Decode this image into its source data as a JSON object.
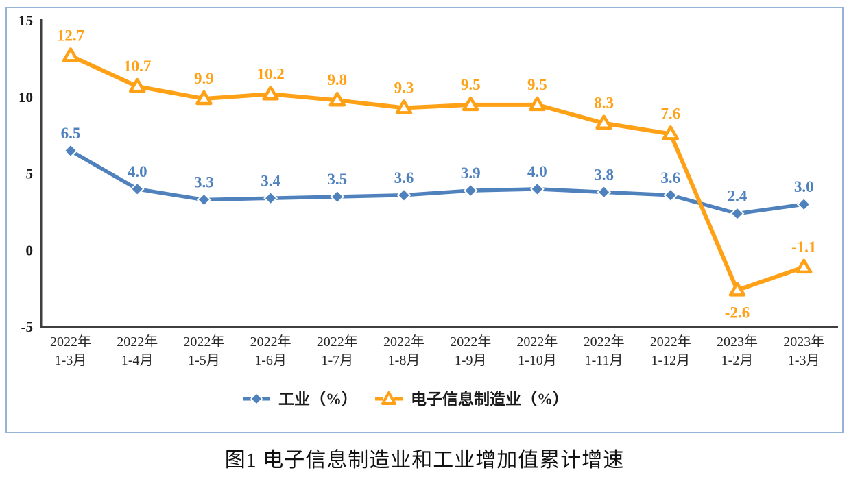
{
  "figure": {
    "caption": "图1 电子信息制造业和工业增加值累计增速"
  },
  "chart_data": {
    "type": "line",
    "title": "图1 电子信息制造业和工业增加值累计增速",
    "categories": [
      [
        "2022年",
        "1-3月"
      ],
      [
        "2022年",
        "1-4月"
      ],
      [
        "2022年",
        "1-5月"
      ],
      [
        "2022年",
        "1-6月"
      ],
      [
        "2022年",
        "1-7月"
      ],
      [
        "2022年",
        "1-8月"
      ],
      [
        "2022年",
        "1-9月"
      ],
      [
        "2022年",
        "1-10月"
      ],
      [
        "2022年",
        "1-11月"
      ],
      [
        "2022年",
        "1-12月"
      ],
      [
        "2023年",
        "1-2月"
      ],
      [
        "2023年",
        "1-3月"
      ]
    ],
    "series": [
      {
        "name": "工业（%）",
        "marker": "diamond",
        "color": "#4f81bd",
        "values": [
          6.5,
          4.0,
          3.3,
          3.4,
          3.5,
          3.6,
          3.9,
          4.0,
          3.8,
          3.6,
          2.4,
          3.0
        ],
        "labels": [
          "6.5",
          "4.0",
          "3.3",
          "3.4",
          "3.5",
          "3.6",
          "3.9",
          "4.0",
          "3.8",
          "3.6",
          "2.4",
          "3.0"
        ],
        "labels_below": []
      },
      {
        "name": "电子信息制造业（%）",
        "marker": "triangle",
        "color": "#ffa116",
        "values": [
          12.7,
          10.7,
          9.9,
          10.2,
          9.8,
          9.3,
          9.5,
          9.5,
          8.3,
          7.6,
          -2.6,
          -1.1
        ],
        "labels": [
          "12.7",
          "10.7",
          "9.9",
          "10.2",
          "9.8",
          "9.3",
          "9.5",
          "9.5",
          "8.3",
          "7.6",
          "-2.6",
          "-1.1"
        ],
        "labels_below": [
          10
        ]
      }
    ],
    "xlabel": "",
    "ylabel": "",
    "ylim": [
      -5,
      15
    ],
    "yticks": [
      15,
      10,
      5,
      0,
      -5
    ],
    "grid": false,
    "legend_position": "bottom",
    "axis_color": "#3f3f3f",
    "box_border_color": "#95b3d7"
  }
}
